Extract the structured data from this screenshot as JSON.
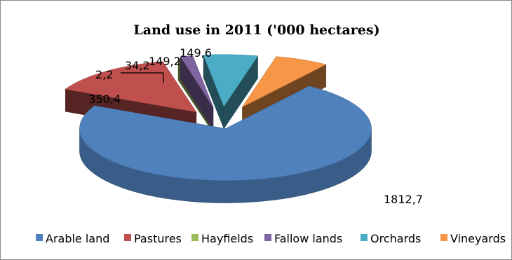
{
  "chart_data": {
    "type": "pie",
    "title": "Land use in 2011 ('000 hectares)",
    "categories": [
      "Arable land",
      "Pastures",
      "Hayfields",
      "Fallow lands",
      "Orchards",
      "Vineyards"
    ],
    "values": [
      1812.7,
      350.4,
      2.2,
      34.2,
      149.2,
      149.6
    ],
    "value_labels": [
      "1812,7",
      "350,4",
      "2,2",
      "34,2",
      "149,2",
      "149,6"
    ],
    "colors": [
      "#4F81BD",
      "#C0504D",
      "#9BBB59",
      "#8064A2",
      "#4BACC6",
      "#F79646"
    ],
    "style": "3d-exploded",
    "legend_position": "bottom"
  }
}
